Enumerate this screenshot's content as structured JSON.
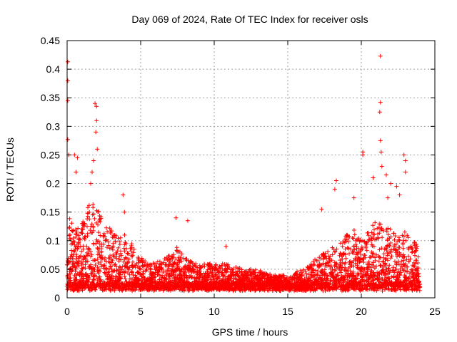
{
  "chart_data": {
    "type": "scatter",
    "title": "Day 069 of 2024, Rate Of TEC Index for receiver osls",
    "xlabel": "GPS time / hours",
    "ylabel": "ROTI / TECUs",
    "xlim": [
      0,
      25
    ],
    "ylim": [
      0,
      0.45
    ],
    "xticks": [
      "0",
      "5",
      "10",
      "15",
      "20",
      "25"
    ],
    "yticks": [
      "0",
      "0.05",
      "0.1",
      "0.15",
      "0.2",
      "0.25",
      "0.3",
      "0.35",
      "0.4",
      "0.45"
    ],
    "grid": true,
    "marker": "plus",
    "color": "#ff0000",
    "envelope": {
      "x": [
        0,
        0.5,
        1.0,
        1.5,
        2.0,
        2.5,
        3.0,
        3.5,
        4.0,
        4.5,
        5.0,
        6.0,
        7.0,
        7.5,
        8.0,
        9.0,
        10.0,
        11.0,
        12.0,
        13.0,
        14.0,
        15.0,
        16.0,
        17.0,
        18.0,
        18.5,
        19.0,
        19.5,
        20.0,
        20.5,
        21.0,
        21.5,
        22.0,
        22.5,
        23.0,
        23.5,
        24.0
      ],
      "y": [
        0.15,
        0.12,
        0.13,
        0.17,
        0.16,
        0.13,
        0.12,
        0.11,
        0.11,
        0.09,
        0.07,
        0.06,
        0.08,
        0.09,
        0.07,
        0.06,
        0.06,
        0.06,
        0.05,
        0.05,
        0.04,
        0.04,
        0.05,
        0.07,
        0.09,
        0.1,
        0.11,
        0.12,
        0.1,
        0.12,
        0.14,
        0.13,
        0.12,
        0.11,
        0.12,
        0.1,
        0.09
      ]
    },
    "outliers": [
      {
        "x": 0.05,
        "y": 0.413
      },
      {
        "x": 0.05,
        "y": 0.38
      },
      {
        "x": 0.05,
        "y": 0.345
      },
      {
        "x": 0.05,
        "y": 0.277
      },
      {
        "x": 0.1,
        "y": 0.25
      },
      {
        "x": 0.5,
        "y": 0.25
      },
      {
        "x": 0.7,
        "y": 0.245
      },
      {
        "x": 0.6,
        "y": 0.22
      },
      {
        "x": 1.9,
        "y": 0.34
      },
      {
        "x": 2.0,
        "y": 0.335
      },
      {
        "x": 2.0,
        "y": 0.31
      },
      {
        "x": 1.95,
        "y": 0.29
      },
      {
        "x": 2.05,
        "y": 0.26
      },
      {
        "x": 1.8,
        "y": 0.24
      },
      {
        "x": 1.7,
        "y": 0.22
      },
      {
        "x": 1.6,
        "y": 0.2
      },
      {
        "x": 3.8,
        "y": 0.18
      },
      {
        "x": 3.9,
        "y": 0.15
      },
      {
        "x": 7.4,
        "y": 0.14
      },
      {
        "x": 8.2,
        "y": 0.135
      },
      {
        "x": 10.8,
        "y": 0.09
      },
      {
        "x": 17.3,
        "y": 0.155
      },
      {
        "x": 18.3,
        "y": 0.205
      },
      {
        "x": 18.2,
        "y": 0.19
      },
      {
        "x": 19.5,
        "y": 0.175
      },
      {
        "x": 20.1,
        "y": 0.255
      },
      {
        "x": 20.1,
        "y": 0.25
      },
      {
        "x": 21.3,
        "y": 0.423
      },
      {
        "x": 21.3,
        "y": 0.342
      },
      {
        "x": 21.25,
        "y": 0.325
      },
      {
        "x": 21.3,
        "y": 0.275
      },
      {
        "x": 21.35,
        "y": 0.255
      },
      {
        "x": 21.4,
        "y": 0.23
      },
      {
        "x": 20.8,
        "y": 0.21
      },
      {
        "x": 21.7,
        "y": 0.215
      },
      {
        "x": 22.0,
        "y": 0.2
      },
      {
        "x": 22.4,
        "y": 0.195
      },
      {
        "x": 22.9,
        "y": 0.25
      },
      {
        "x": 23.0,
        "y": 0.24
      },
      {
        "x": 23.0,
        "y": 0.22
      },
      {
        "x": 22.6,
        "y": 0.18
      },
      {
        "x": 21.8,
        "y": 0.175
      }
    ]
  }
}
